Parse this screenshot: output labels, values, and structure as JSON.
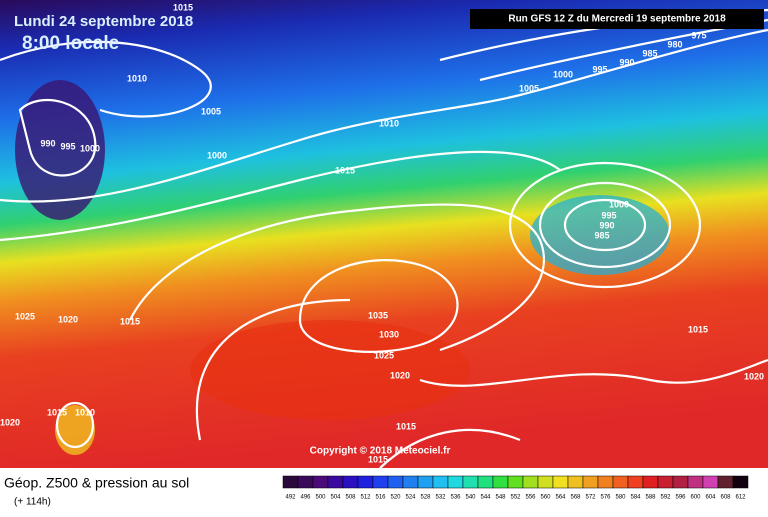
{
  "header": {
    "date": "Lundi 24 septembre 2018",
    "time": "8:00 locale",
    "run": "Run GFS 12 Z du Mercredi 19 septembre 2018"
  },
  "copyright": "Copyright © 2018 Meteociel.fr",
  "footer": {
    "title": "Géop. Z500 & pression au sol",
    "lead": "(+ 114h)"
  },
  "isobar_labels": [
    "1015",
    "1010",
    "990",
    "995",
    "1000",
    "1005",
    "1000",
    "1010",
    "1015",
    "1005",
    "1000",
    "995",
    "990",
    "985",
    "980",
    "975",
    "1000",
    "995",
    "990",
    "985",
    "1025",
    "1020",
    "1015",
    "1035",
    "1030",
    "1025",
    "1020",
    "1015",
    "1020",
    "1015",
    "1010",
    "1020",
    "1015",
    "1015"
  ],
  "scale": [
    492,
    496,
    500,
    504,
    508,
    512,
    516,
    520,
    524,
    528,
    532,
    536,
    540,
    544,
    548,
    552,
    556,
    560,
    564,
    568,
    572,
    576,
    580,
    584,
    588,
    592,
    596,
    600,
    604,
    608,
    612
  ]
}
